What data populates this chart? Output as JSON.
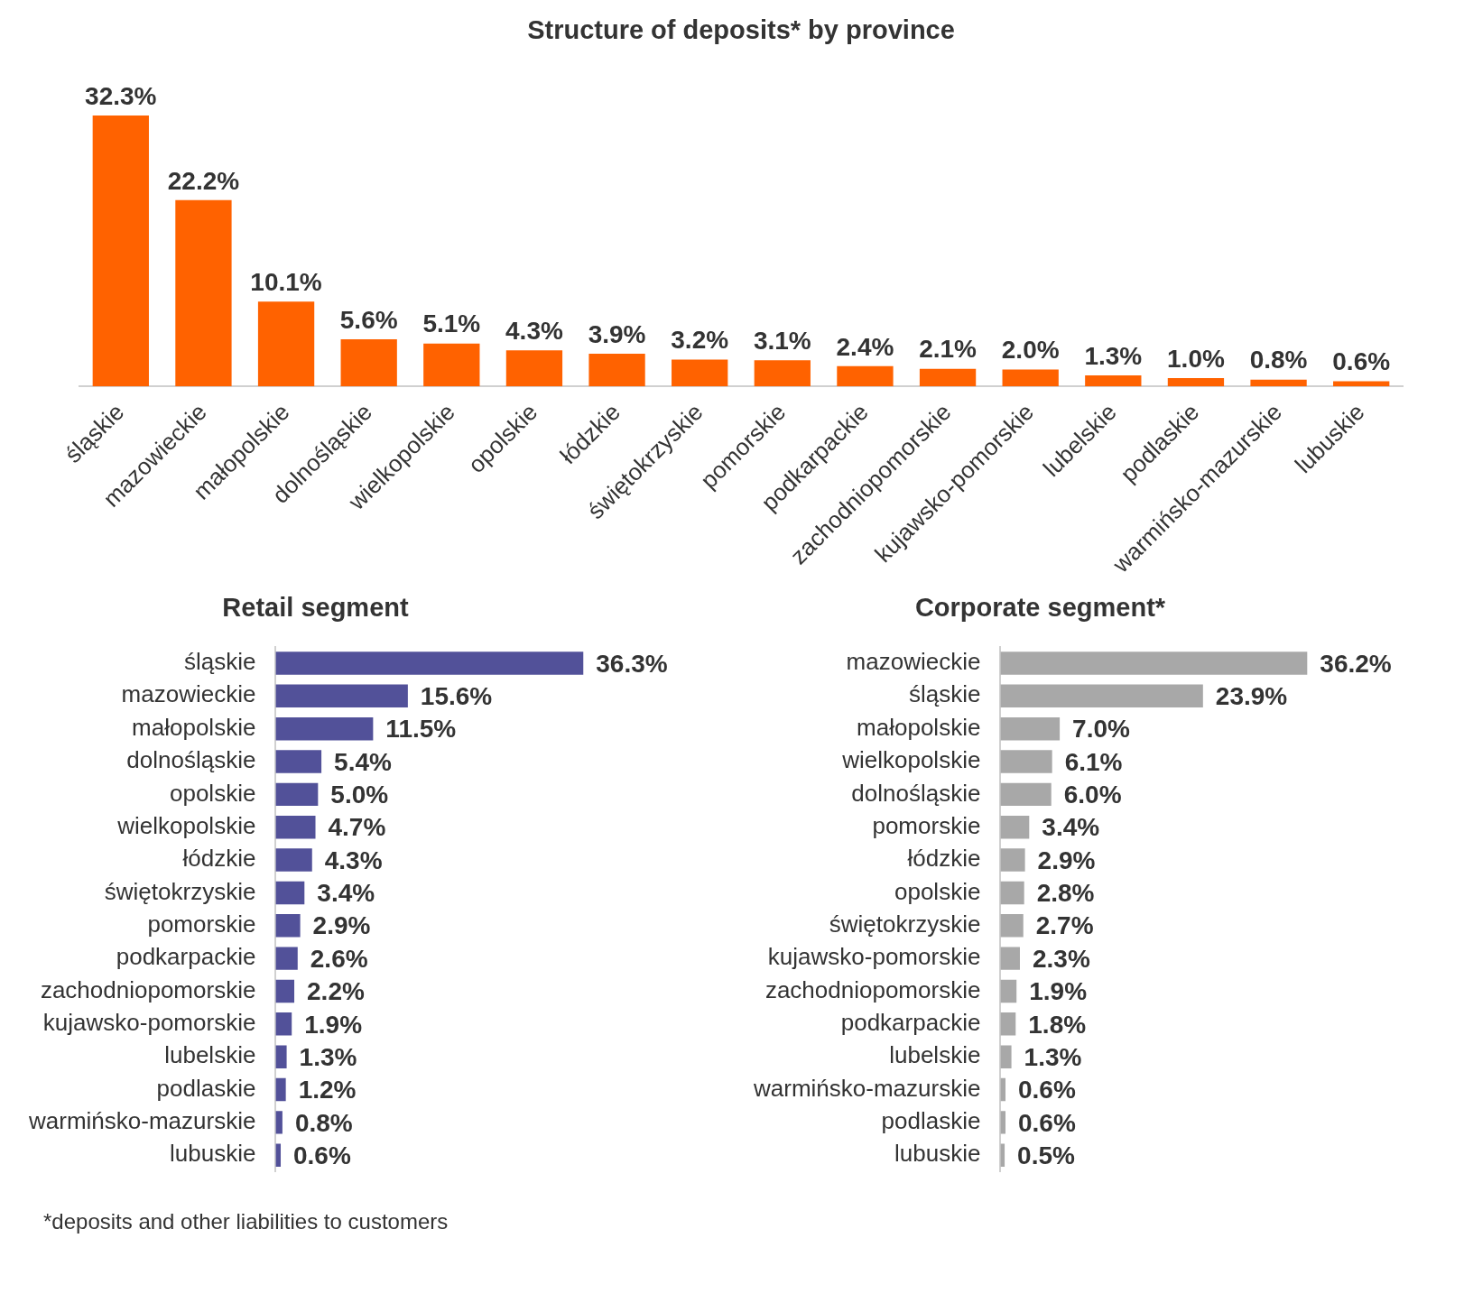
{
  "chart_data": [
    {
      "type": "bar",
      "title": "Structure of deposits* by province",
      "categories": [
        "śląskie",
        "mazowieckie",
        "małopolskie",
        "dolnośląskie",
        "wielkopolskie",
        "opolskie",
        "łódzkie",
        "świętokrzyskie",
        "pomorskie",
        "podkarpackie",
        "zachodniopomorskie",
        "kujawsko-pomorskie",
        "lubelskie",
        "podlaskie",
        "warmińsko-mazurskie",
        "lubuskie"
      ],
      "values": [
        32.3,
        22.2,
        10.1,
        5.6,
        5.1,
        4.3,
        3.9,
        3.2,
        3.1,
        2.4,
        2.1,
        2.0,
        1.3,
        1.0,
        0.8,
        0.6
      ],
      "value_labels": [
        "32.3%",
        "22.2%",
        "10.1%",
        "5.6%",
        "5.1%",
        "4.3%",
        "3.9%",
        "3.2%",
        "3.1%",
        "2.4%",
        "2.1%",
        "2.0%",
        "1.3%",
        "1.0%",
        "0.8%",
        "0.6%"
      ],
      "color": "#ff6200",
      "tick_labels": "x"
    },
    {
      "type": "bar",
      "orientation": "horizontal",
      "title": "Retail segment",
      "categories": [
        "śląskie",
        "mazowieckie",
        "małopolskie",
        "dolnośląskie",
        "opolskie",
        "wielkopolskie",
        "łódzkie",
        "świętokrzyskie",
        "pomorskie",
        "podkarpackie",
        "zachodniopomorskie",
        "kujawsko-pomorskie",
        "lubelskie",
        "podlaskie",
        "warmińsko-mazurskie",
        "lubuskie"
      ],
      "values": [
        36.3,
        15.6,
        11.5,
        5.4,
        5.0,
        4.7,
        4.3,
        3.4,
        2.9,
        2.6,
        2.2,
        1.9,
        1.3,
        1.2,
        0.8,
        0.6
      ],
      "value_labels": [
        "36.3%",
        "15.6%",
        "11.5%",
        "5.4%",
        "5.0%",
        "4.7%",
        "4.3%",
        "3.4%",
        "2.9%",
        "2.6%",
        "2.2%",
        "1.9%",
        "1.3%",
        "1.2%",
        "0.8%",
        "0.6%"
      ],
      "color": "#525199",
      "tick_labels": "y",
      "annotations": [
        "*deposits and other liabilities to customers"
      ]
    },
    {
      "type": "bar",
      "orientation": "horizontal",
      "title": "Corporate segment*",
      "categories": [
        "mazowieckie",
        "śląskie",
        "małopolskie",
        "wielkopolskie",
        "dolnośląskie",
        "pomorskie",
        "łódzkie",
        "opolskie",
        "świętokrzyskie",
        "kujawsko-pomorskie",
        "zachodniopomorskie",
        "podkarpackie",
        "lubelskie",
        "warmińsko-mazurskie",
        "podlaskie",
        "lubuskie"
      ],
      "values": [
        36.2,
        23.9,
        7.0,
        6.1,
        6.0,
        3.4,
        2.9,
        2.8,
        2.7,
        2.3,
        1.9,
        1.8,
        1.3,
        0.6,
        0.6,
        0.5
      ],
      "value_labels": [
        "36.2%",
        "23.9%",
        "7.0%",
        "6.1%",
        "6.0%",
        "3.4%",
        "2.9%",
        "2.8%",
        "2.7%",
        "2.3%",
        "1.9%",
        "1.8%",
        "1.3%",
        "0.6%",
        "0.6%",
        "0.5%"
      ],
      "color": "#a8a8a8",
      "tick_labels": "y"
    }
  ]
}
